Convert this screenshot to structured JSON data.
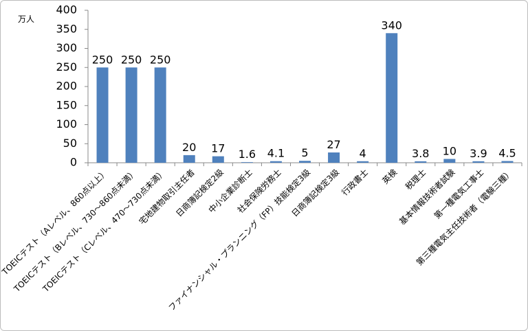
{
  "chart_data": {
    "type": "bar",
    "y_label": "万人",
    "categories": [
      "TOEICテスト（Aレベル、860点以上）",
      "TOEICテスト（Bレベル、730〜860点未満）",
      "TOEICテスト（Cレベル、470〜730点未満）",
      "宅地建物取引主任者",
      "日商簿記検定2級",
      "中小企業診断士",
      "社会保険労務士",
      "ファイナンシャル・プランニング（FP）技能検定3級",
      "日商簿記検定3級",
      "行政書士",
      "英検",
      "税理士",
      "基本情報技術者試験",
      "第一種電気工事士",
      "第三種電気主任技術者（電験三種）"
    ],
    "values": [
      250,
      250,
      250,
      20,
      17,
      1.6,
      4.1,
      5,
      27,
      4,
      340,
      3.8,
      10,
      3.9,
      4.5
    ],
    "color": "#4f81bd",
    "ylim": [
      0,
      400
    ],
    "yticks": [
      0,
      50,
      100,
      150,
      200,
      250,
      300,
      350,
      400
    ],
    "grid": false
  }
}
